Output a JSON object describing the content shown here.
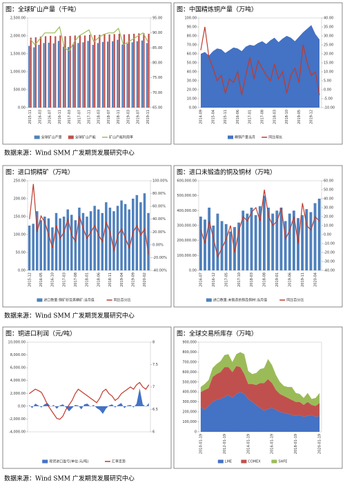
{
  "chart_data": [
    {
      "type": "combo",
      "title": "图：全球矿山产量（千吨）",
      "categories": [
        "2015-11",
        null,
        "2016-03",
        null,
        "2016-07",
        null,
        "2016-11",
        null,
        "2017-03",
        null,
        "2017-07",
        null,
        "2017-11",
        null,
        "2018-03",
        null,
        "2018-07",
        null,
        "2018-11",
        null,
        "2019-03",
        null,
        "2019-07",
        null,
        "2019-11"
      ],
      "series": [
        {
          "name": "全球矿山产量",
          "kind": "bar",
          "color": "#4f81bd",
          "values": [
            1720,
            1680,
            1750,
            1800,
            1810,
            1790,
            1860,
            1700,
            1690,
            1760,
            1800,
            1820,
            1860,
            1750,
            1800,
            1830,
            1840,
            1850,
            1890,
            1760,
            1790,
            1820,
            1850,
            1870,
            1800
          ]
        },
        {
          "name": "全球矿山产能",
          "kind": "bar",
          "color": "#c0504d",
          "values": [
            1950,
            1960,
            1980,
            1990,
            2000,
            1990,
            2010,
            1990,
            2000,
            2010,
            2020,
            2010,
            2030,
            2020,
            2030,
            2040,
            2040,
            2050,
            2060,
            2040,
            2050,
            2060,
            2070,
            2070,
            2060
          ]
        },
        {
          "name": "矿山产能利用率",
          "kind": "line",
          "axis": "y2",
          "color": "#9bbb59",
          "values": [
            88,
            86,
            88,
            90,
            90,
            90,
            92,
            85,
            84,
            87,
            89,
            90,
            91,
            87,
            88.5,
            89.5,
            90,
            90,
            91.5,
            86,
            87,
            88,
            89,
            90,
            87
          ]
        }
      ],
      "ylim": [
        0,
        2500
      ],
      "yticks": [
        {
          "value": 0,
          "label": "0.00"
        },
        {
          "value": 500,
          "label": "500.00"
        },
        {
          "value": 1000,
          "label": "1,000.00"
        },
        {
          "value": 1500,
          "label": "1,500.00"
        },
        {
          "value": 2000,
          "label": "2,000.00"
        },
        {
          "value": 2500,
          "label": "2,500.00"
        }
      ],
      "y2lim": [
        65,
        95
      ],
      "y2ticks": [
        {
          "value": 65,
          "label": "65.00"
        },
        {
          "value": 70,
          "label": "70.00"
        },
        {
          "value": 75,
          "label": "75.00"
        },
        {
          "value": 80,
          "label": "80.00"
        },
        {
          "value": 85,
          "label": "85.00"
        },
        {
          "value": 90,
          "label": "90.00"
        },
        {
          "value": 95,
          "label": "95.00"
        }
      ]
    },
    {
      "type": "combo",
      "title": "图：中国精炼铜产量（万吨）",
      "categories": [
        "2014-09",
        null,
        null,
        "2015-04",
        null,
        null,
        "2015-11",
        null,
        null,
        "2016-06",
        null,
        null,
        "2017-01",
        null,
        null,
        "2017-08",
        null,
        null,
        "2018-03",
        null,
        null,
        "2018-10",
        null,
        null,
        "2019-05",
        null,
        null,
        "2019-12",
        null,
        null
      ],
      "series": [
        {
          "name": "精铜产量当月",
          "kind": "area",
          "color": "#4472c4",
          "values": [
            60,
            62,
            58,
            63,
            66,
            65,
            61,
            64,
            67,
            66,
            63,
            68,
            70,
            69,
            72,
            74,
            71,
            75,
            78,
            73,
            77,
            80,
            78,
            74,
            79,
            84,
            88,
            92,
            82,
            76
          ]
        },
        {
          "name": "同比增长",
          "kind": "line",
          "axis": "y2",
          "color": "#c0392b",
          "values": [
            22,
            35,
            18,
            12,
            5,
            8,
            -2,
            6,
            4,
            10,
            -3,
            8,
            18,
            6,
            16,
            12,
            8,
            5,
            14,
            6,
            10,
            -2,
            8,
            12,
            4,
            25,
            15,
            8,
            10,
            -3
          ]
        }
      ],
      "ylim": [
        0,
        100
      ],
      "yticks": [
        {
          "value": 0,
          "label": "0.00"
        },
        {
          "value": 10,
          "label": "10.00"
        },
        {
          "value": 20,
          "label": "20.00"
        },
        {
          "value": 30,
          "label": "30.00"
        },
        {
          "value": 40,
          "label": "40.00"
        },
        {
          "value": 50,
          "label": "50.00"
        },
        {
          "value": 60,
          "label": "60.00"
        },
        {
          "value": 70,
          "label": "70.00"
        },
        {
          "value": 80,
          "label": "80.00"
        },
        {
          "value": 90,
          "label": "90.00"
        },
        {
          "value": 100,
          "label": "100.00"
        }
      ],
      "y2lim": [
        -10,
        40
      ],
      "y2ticks": [
        {
          "value": -10,
          "label": "-10.00"
        },
        {
          "value": -5,
          "label": "-5.00"
        },
        {
          "value": 0,
          "label": "0.00"
        },
        {
          "value": 5,
          "label": "5.00"
        },
        {
          "value": 10,
          "label": "10.00"
        },
        {
          "value": 15,
          "label": "15.00"
        },
        {
          "value": 20,
          "label": "20.00"
        },
        {
          "value": 25,
          "label": "25.00"
        },
        {
          "value": 30,
          "label": "30.00"
        },
        {
          "value": 35,
          "label": "35.00"
        },
        {
          "value": 40,
          "label": "40.00"
        }
      ]
    },
    {
      "type": "combo",
      "title": "图：进口铜精矿（万吨）",
      "categories": [
        "2015-12",
        null,
        null,
        "2016-05",
        null,
        null,
        "2016-10",
        null,
        null,
        "2017-03",
        null,
        null,
        "2017-08",
        null,
        null,
        "2018-01",
        null,
        null,
        "2018-06",
        null,
        null,
        "2018-11",
        null,
        null,
        "2019-04",
        null,
        null,
        "2019-09",
        null,
        null,
        "2020-02",
        null
      ],
      "series": [
        {
          "name": "进口数量:铜矿砂及其精矿:当月值",
          "kind": "bar",
          "color": "#4f81bd",
          "values": [
            125,
            130,
            165,
            140,
            150,
            145,
            120,
            160,
            145,
            150,
            170,
            155,
            140,
            175,
            160,
            150,
            165,
            180,
            170,
            160,
            190,
            175,
            165,
            180,
            195,
            185,
            170,
            200,
            210,
            190,
            215,
            160
          ]
        },
        {
          "name": "同比百分比",
          "kind": "line",
          "axis": "y2",
          "color": "#c0392b",
          "values": [
            40,
            95,
            20,
            45,
            35,
            15,
            -5,
            30,
            10,
            20,
            40,
            15,
            5,
            45,
            25,
            10,
            20,
            30,
            15,
            5,
            35,
            20,
            -10,
            15,
            25,
            10,
            -5,
            20,
            30,
            15,
            25,
            -15
          ]
        }
      ],
      "ylim": [
        0,
        250
      ],
      "yticks": [
        {
          "value": 0,
          "label": "0.00"
        },
        {
          "value": 50,
          "label": "50.00"
        },
        {
          "value": 100,
          "label": "100.00"
        },
        {
          "value": 150,
          "label": "150.00"
        },
        {
          "value": 200,
          "label": "200.00"
        },
        {
          "value": 250,
          "label": "250.00"
        }
      ],
      "y2lim": [
        -40,
        100
      ],
      "y2ticks": [
        {
          "value": -40,
          "label": "-40.00%"
        },
        {
          "value": -20,
          "label": "-20.00%"
        },
        {
          "value": 0,
          "label": "0.00%"
        },
        {
          "value": 20,
          "label": "20.00%"
        },
        {
          "value": 40,
          "label": "40.00%"
        },
        {
          "value": 60,
          "label": "60.00%"
        },
        {
          "value": 80,
          "label": "80.00%"
        },
        {
          "value": 100,
          "label": "100.00%"
        }
      ]
    },
    {
      "type": "combo",
      "title": "图：进口未锻造的铜及铜材（万吨）",
      "categories": [
        "2016-07",
        null,
        null,
        "2016-12",
        null,
        null,
        "2017-05",
        null,
        null,
        "2017-10",
        null,
        null,
        "2018-03",
        null,
        null,
        "2018-08",
        null,
        null,
        "2019-01",
        null,
        null,
        "2019-06",
        null,
        null,
        "2019-11",
        null,
        null,
        "2020-04",
        null
      ],
      "series": [
        {
          "name": "进口数量:未锻造的铜及铜材:当月值",
          "kind": "bar",
          "color": "#4f81bd",
          "values": [
            360000,
            340000,
            420000,
            300000,
            380000,
            330000,
            310000,
            260000,
            290000,
            320000,
            400000,
            380000,
            420000,
            370000,
            430000,
            500000,
            420000,
            380000,
            400000,
            420000,
            330000,
            380000,
            400000,
            350000,
            370000,
            410000,
            390000,
            450000,
            480000
          ]
        },
        {
          "name": "同比百分比",
          "kind": "line",
          "axis": "y2",
          "color": "#c0392b",
          "values": [
            5,
            -10,
            15,
            -5,
            -25,
            -15,
            -5,
            10,
            -20,
            5,
            20,
            15,
            25,
            30,
            15,
            50,
            20,
            10,
            15,
            30,
            -5,
            5,
            20,
            -10,
            35,
            10,
            5,
            20,
            15
          ]
        }
      ],
      "ylim": [
        0,
        600000
      ],
      "yticks": [
        {
          "value": 0,
          "label": "0.00"
        },
        {
          "value": 100000,
          "label": "100,000.00"
        },
        {
          "value": 200000,
          "label": "200,000.00"
        },
        {
          "value": 300000,
          "label": "300,000.00"
        },
        {
          "value": 400000,
          "label": "400,000.00"
        },
        {
          "value": 500000,
          "label": "500,000.00"
        },
        {
          "value": 600000,
          "label": "600,000.00"
        }
      ],
      "y2lim": [
        -40,
        60
      ],
      "y2ticks": [
        {
          "value": -40,
          "label": "-40.00"
        },
        {
          "value": -30,
          "label": "-30.00"
        },
        {
          "value": -20,
          "label": "-20.00"
        },
        {
          "value": -10,
          "label": "-10.00"
        },
        {
          "value": 0,
          "label": "0.00"
        },
        {
          "value": 10,
          "label": "10.00"
        },
        {
          "value": 20,
          "label": "20.00"
        },
        {
          "value": 30,
          "label": "30.00"
        },
        {
          "value": 40,
          "label": "40.00"
        },
        {
          "value": 50,
          "label": "50.00"
        },
        {
          "value": 60,
          "label": "60.00"
        }
      ]
    },
    {
      "type": "combo",
      "title": "图：铜进口利润（元/吨）",
      "series": [
        {
          "name": "现货进口盈亏(单位:元/吨)",
          "kind": "area",
          "color": "#4472c4",
          "values": [
            200,
            -300,
            400,
            100,
            -200,
            300,
            500,
            -100,
            200,
            -400,
            100,
            300,
            -200,
            -800,
            -300,
            200,
            100,
            -500,
            300,
            400,
            -100,
            200,
            -300,
            -600,
            -1200,
            -400,
            100,
            300,
            -200,
            200,
            500,
            -300,
            100,
            200,
            -200,
            400,
            2800,
            300,
            -100,
            500
          ]
        },
        {
          "name": "汇率走势",
          "kind": "line",
          "axis": "y2",
          "color": "#c0392b",
          "values": [
            6.85,
            6.9,
            6.95,
            6.92,
            6.88,
            6.75,
            6.6,
            6.5,
            6.4,
            6.3,
            6.28,
            6.35,
            6.5,
            6.6,
            6.7,
            6.85,
            6.95,
            6.9,
            6.85,
            6.8,
            6.75,
            6.7,
            6.65,
            6.75,
            6.9,
            6.95,
            6.85,
            6.8,
            6.7,
            6.75,
            6.85,
            6.9,
            6.95,
            7.0,
            6.95,
            7.05,
            7.1,
            7.0,
            6.95,
            7.05
          ]
        }
      ],
      "ylim": [
        -4000,
        10000
      ],
      "yticks": [
        {
          "value": -4000,
          "label": "-4,000.00"
        },
        {
          "value": -2000,
          "label": "-2,000.00"
        },
        {
          "value": 0,
          "label": "0.00"
        },
        {
          "value": 2000,
          "label": "2,000.00"
        },
        {
          "value": 4000,
          "label": "4,000.00"
        },
        {
          "value": 6000,
          "label": "6,000.00"
        },
        {
          "value": 8000,
          "label": "8,000.00"
        },
        {
          "value": 10000,
          "label": "10,000.00"
        }
      ],
      "y2lim": [
        6,
        8
      ],
      "y2ticks": [
        6,
        6.5,
        7,
        7.5,
        8
      ]
    },
    {
      "type": "stacked-area",
      "title": "图：全球交易所库存（万吨）",
      "categories": [
        "2010-01-19",
        null,
        null,
        null,
        null,
        null,
        "2012-01-19",
        null,
        null,
        null,
        null,
        null,
        "2014-01-19",
        null,
        null,
        null,
        null,
        null,
        "2016-01-19",
        null,
        null,
        null,
        null,
        null,
        "2018-01-19",
        null,
        null,
        null,
        null,
        null,
        "2020-01-19"
      ],
      "series": [
        {
          "name": "LME",
          "color": "#4472c4",
          "values": [
            250000,
            220000,
            260000,
            300000,
            320000,
            330000,
            350000,
            370000,
            340000,
            380000,
            400000,
            380000,
            330000,
            300000,
            270000,
            240000,
            210000,
            230000,
            240000,
            220000,
            200000,
            190000,
            180000,
            170000,
            160000,
            170000,
            150000,
            160000,
            170000,
            150000,
            160000
          ]
        },
        {
          "name": "COMEX",
          "color": "#c0504d",
          "values": [
            150000,
            200000,
            180000,
            250000,
            260000,
            270000,
            300000,
            280000,
            260000,
            280000,
            250000,
            200000,
            150000,
            180000,
            200000,
            250000,
            280000,
            300000,
            250000,
            200000,
            180000,
            170000,
            160000,
            150000,
            140000,
            130000,
            120000,
            140000,
            100000,
            110000,
            130000
          ]
        },
        {
          "name": "SHFE",
          "color": "#9bbb59",
          "values": [
            50000,
            60000,
            80000,
            90000,
            100000,
            110000,
            120000,
            130000,
            100000,
            120000,
            150000,
            200000,
            130000,
            100000,
            120000,
            140000,
            150000,
            200000,
            180000,
            150000,
            120000,
            100000,
            110000,
            130000,
            90000,
            80000,
            70000,
            90000,
            60000,
            80000,
            100000
          ]
        }
      ],
      "ylim": [
        0,
        900000
      ],
      "yticks": [
        0,
        {
          "value": 100000,
          "label": "100,000"
        },
        {
          "value": 200000,
          "label": "200,000"
        },
        {
          "value": 300000,
          "label": "300,000"
        },
        {
          "value": 400000,
          "label": "400,000"
        },
        {
          "value": 500000,
          "label": "500,000"
        },
        {
          "value": 600000,
          "label": "600,000"
        },
        {
          "value": 700000,
          "label": "700,000"
        },
        {
          "value": 800000,
          "label": "800,000"
        },
        {
          "value": 900000,
          "label": "900,000"
        }
      ]
    }
  ],
  "sources": [
    "数据来源：Wind SMM 广发期货发展研究中心",
    "数据来源：Wind SMM 广发期货发展研究中心",
    "数据来源：Wind SMM 广发期货发展研究中心"
  ]
}
